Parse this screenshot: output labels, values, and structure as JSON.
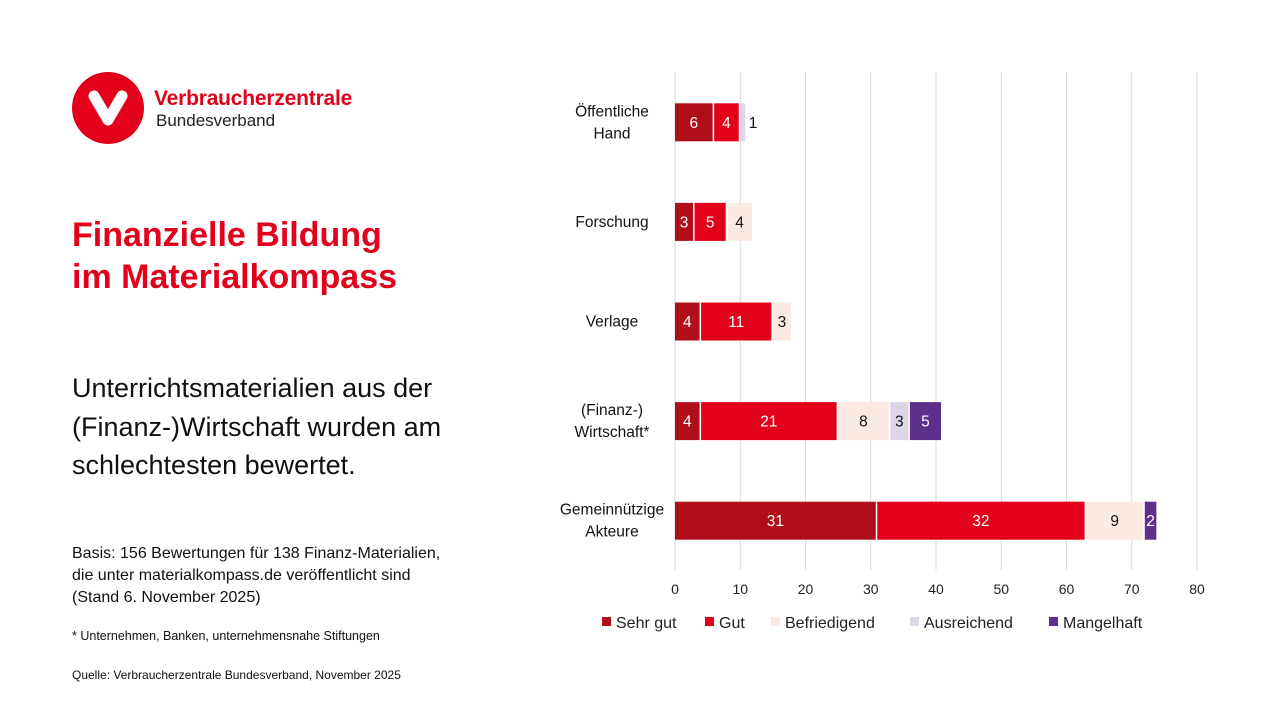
{
  "logo": {
    "icon": "v-logo-icon",
    "brand": "Verbraucherzentrale",
    "sub": "Bundesverband",
    "color": "#e2001a"
  },
  "title": {
    "line1": "Finanzielle Bildung",
    "line2": "im Materialkompass"
  },
  "lead": "Unterrichtsmaterialien aus der (Finanz-)Wirtschaft wurden am schlechtesten bewertet.",
  "basis": "Basis: 156 Bewertungen für 138 Finanz-Materialien, die unter materialkompass.de veröffentlicht sind (Stand 6. November 2025)",
  "footnote": "* Unternehmen, Banken, unternehmensnahe Stiftungen",
  "source": "Quelle: Verbraucherzentrale Bundesverband, November 2025",
  "chart_data": {
    "type": "bar",
    "orientation": "horizontal",
    "stacked": true,
    "title": "",
    "xlabel": "",
    "ylabel": "",
    "xlim": [
      0,
      80
    ],
    "xticks": [
      0,
      10,
      20,
      30,
      40,
      50,
      60,
      70,
      80
    ],
    "grid": true,
    "legend_position": "bottom",
    "categories": [
      [
        "Öffentliche",
        "Hand"
      ],
      [
        "Forschung"
      ],
      [
        "Verlage"
      ],
      [
        "(Finanz-)",
        "Wirtschaft*"
      ],
      [
        "Gemeinnützige",
        "Akteure"
      ]
    ],
    "series": [
      {
        "name": "Sehr gut",
        "color": "#b00f1a",
        "text_color": "#ffffff",
        "values": [
          6,
          3,
          4,
          4,
          31
        ]
      },
      {
        "name": "Gut",
        "color": "#e2001a",
        "text_color": "#ffffff",
        "values": [
          4,
          5,
          11,
          21,
          32
        ]
      },
      {
        "name": "Befriedigend",
        "color": "#fbeae3",
        "text_color": "#111111",
        "values": [
          0,
          4,
          3,
          8,
          9
        ]
      },
      {
        "name": "Ausreichend",
        "color": "#ddd6e8",
        "text_color": "#111111",
        "values": [
          1,
          0,
          0,
          3,
          0
        ]
      },
      {
        "name": "Mangelhaft",
        "color": "#5f2f8c",
        "text_color": "#ffffff",
        "values": [
          0,
          0,
          0,
          5,
          2
        ]
      }
    ]
  }
}
